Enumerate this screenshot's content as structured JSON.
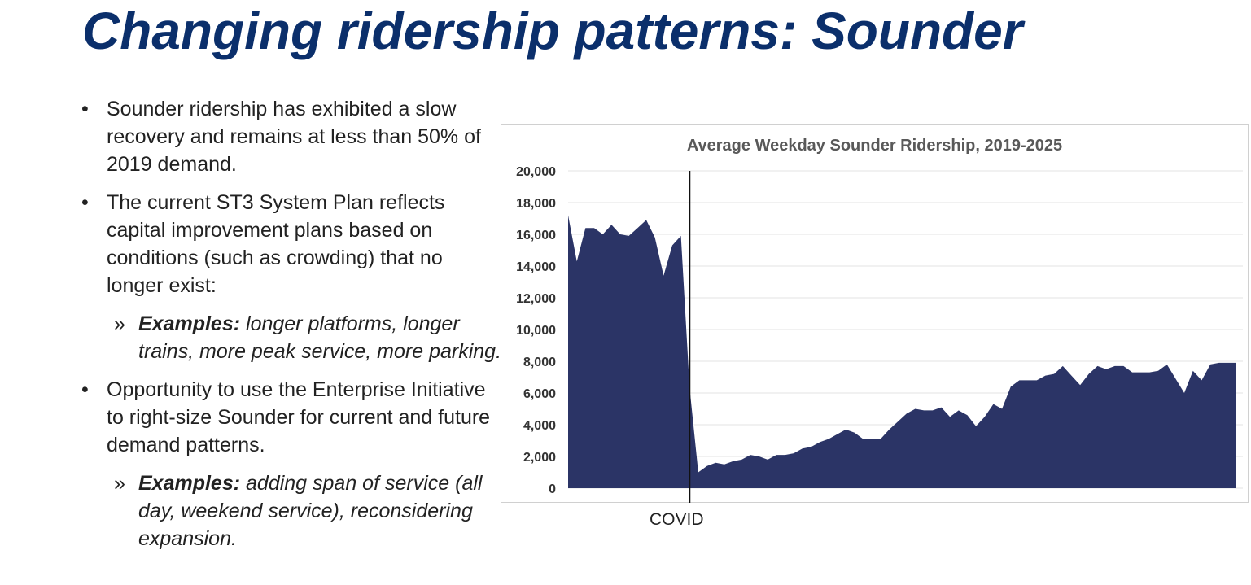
{
  "slide": {
    "title": "Changing ridership patterns: Sounder"
  },
  "bullets": [
    {
      "marker": "•",
      "text": "Sounder ridership has exhibited a slow recovery and remains at less than 50% of 2019 demand."
    },
    {
      "marker": "•",
      "text": "The current ST3 System Plan reflects capital improvement plans based on conditions (such as crowding) that no longer exist:",
      "sub": {
        "marker": "»",
        "label": "Examples:",
        "text": " longer platforms, longer trains, more peak service, more parking."
      }
    },
    {
      "marker": "•",
      "text": "Opportunity to use the Enterprise Initiative to right-size Sounder for current and future demand patterns.",
      "sub": {
        "marker": "»",
        "label": "Examples:",
        "text": " adding span of service (all day, weekend service), reconsidering expansion."
      }
    }
  ],
  "chart_data": {
    "type": "area",
    "title": "Average Weekday Sounder Ridership, 2019-2025",
    "xlabel": "",
    "ylabel": "",
    "ylim": [
      0,
      20000
    ],
    "yticks": [
      0,
      2000,
      4000,
      6000,
      8000,
      10000,
      12000,
      14000,
      16000,
      18000,
      20000
    ],
    "ytick_labels": [
      "0",
      "2,000",
      "4,000",
      "6,000",
      "8,000",
      "10,000",
      "12,000",
      "14,000",
      "16,000",
      "18,000",
      "20,000"
    ],
    "grid": true,
    "fill_color": "#2b3466",
    "series": [
      {
        "name": "Average Weekday Ridership",
        "values": [
          17200,
          14300,
          16400,
          16400,
          16000,
          16600,
          16000,
          15900,
          16400,
          16900,
          15800,
          13400,
          15300,
          15900,
          6300,
          1000,
          1400,
          1600,
          1500,
          1700,
          1800,
          2100,
          2000,
          1800,
          2100,
          2100,
          2200,
          2500,
          2600,
          2900,
          3100,
          3400,
          3700,
          3500,
          3100,
          3100,
          3100,
          3700,
          4200,
          4700,
          5000,
          4900,
          4900,
          5100,
          4500,
          4900,
          4600,
          3900,
          4500,
          5300,
          5000,
          6400,
          6800,
          6800,
          6800,
          7100,
          7200,
          7700,
          7100,
          6500,
          7200,
          7700,
          7500,
          7700,
          7700,
          7300,
          7300,
          7300,
          7400,
          7800,
          6900,
          6000,
          7400,
          6800,
          7800,
          7900,
          7900,
          7900
        ]
      }
    ],
    "annotations": [
      {
        "label": "COVID",
        "at_index": 14
      }
    ]
  }
}
